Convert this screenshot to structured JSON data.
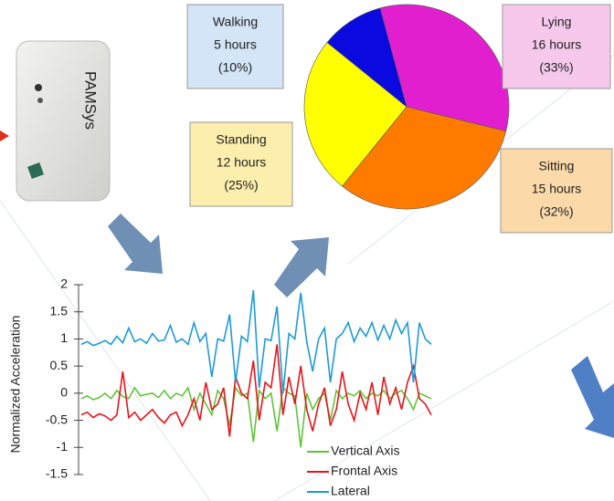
{
  "device": {
    "label": "PAMSys"
  },
  "chart_data": [
    {
      "type": "pie",
      "categories": [
        "Lying",
        "Sitting",
        "Standing",
        "Walking"
      ],
      "values": [
        33,
        32,
        25,
        10
      ],
      "value_labels": [
        "(33%)",
        "(32%)",
        "(25%)",
        "(10%)"
      ],
      "hour_labels": [
        "16 hours",
        "15 hours",
        "12 hours",
        "5 hours"
      ],
      "colors": [
        "#e21fcf",
        "#ff7b00",
        "#ffff00",
        "#0a0ae0"
      ],
      "box_colors": [
        "#f6c9ec",
        "#fbd9a9",
        "#fcefad",
        "#d3e5f6"
      ]
    },
    {
      "type": "line",
      "y_label": "Normalized Acceleration",
      "ylim": [
        -1.5,
        2
      ],
      "yticks": [
        2,
        1.5,
        1,
        0.5,
        0,
        -0.5,
        -1,
        -1.5
      ],
      "legend": "bottom-right",
      "series": [
        {
          "name": "Vertical Axis",
          "color": "#5fc43a",
          "values": [
            -0.1,
            -0.05,
            -0.12,
            -0.08,
            0.0,
            -0.1,
            0.05,
            -0.06,
            -0.1,
            0.1,
            -0.05,
            -0.02,
            0.0,
            -0.08,
            0.05,
            -0.1,
            0.0,
            -0.05,
            0.1,
            -0.3,
            0.0,
            -0.2,
            -0.4,
            0.05,
            -0.1,
            -0.6,
            0.1,
            -0.05,
            0.0,
            -0.9,
            0.05,
            -0.1,
            0.0,
            -0.7,
            0.1,
            0.0,
            -0.05,
            -1.0,
            0.0,
            -0.3,
            -0.1,
            0.0,
            -0.5,
            0.05,
            -0.1,
            0.0,
            -0.05,
            0.05,
            -0.1,
            0.0,
            -0.05,
            0.05,
            -0.1,
            0.0,
            0.05,
            -0.1,
            -0.3,
            0.0,
            -0.05,
            -0.1
          ]
        },
        {
          "name": "Frontal Axis",
          "color": "#e8141c",
          "values": [
            -0.4,
            -0.35,
            -0.45,
            -0.38,
            -0.42,
            -0.5,
            -0.4,
            0.4,
            -0.45,
            -0.35,
            -0.5,
            -0.4,
            -0.3,
            -0.45,
            -0.55,
            -0.4,
            -0.35,
            -0.6,
            -0.4,
            -0.1,
            -0.5,
            0.2,
            -0.3,
            -0.2,
            0.1,
            -0.8,
            0.3,
            0.0,
            -0.1,
            0.6,
            -0.5,
            0.2,
            0.1,
            0.9,
            -0.4,
            0.3,
            -0.2,
            0.5,
            -0.3,
            -0.7,
            -0.2,
            0.1,
            -0.6,
            -0.3,
            0.4,
            -0.2,
            -0.5,
            0.0,
            -0.3,
            0.2,
            -0.4,
            0.3,
            -0.2,
            0.1,
            -0.3,
            0.2,
            0.5,
            -0.1,
            -0.2,
            -0.4
          ]
        },
        {
          "name": "Lateral",
          "color": "#1f9ad6",
          "values": [
            0.9,
            0.95,
            0.88,
            0.92,
            0.97,
            0.9,
            1.05,
            0.93,
            1.2,
            0.95,
            1.0,
            0.92,
            1.1,
            0.96,
            0.98,
            1.25,
            0.94,
            1.0,
            0.9,
            1.3,
            0.95,
            1.1,
            0.3,
            1.0,
            0.96,
            1.45,
            0.2,
            1.05,
            0.95,
            1.9,
            0.1,
            1.0,
            0.97,
            1.6,
            0.0,
            1.1,
            1.0,
            1.85,
            0.95,
            0.4,
            1.0,
            1.2,
            0.2,
            1.0,
            1.1,
            1.3,
            0.95,
            1.2,
            1.05,
            1.3,
            0.98,
            1.25,
            1.0,
            1.35,
            1.1,
            1.3,
            0.2,
            1.3,
            1.0,
            0.9
          ]
        }
      ]
    }
  ]
}
